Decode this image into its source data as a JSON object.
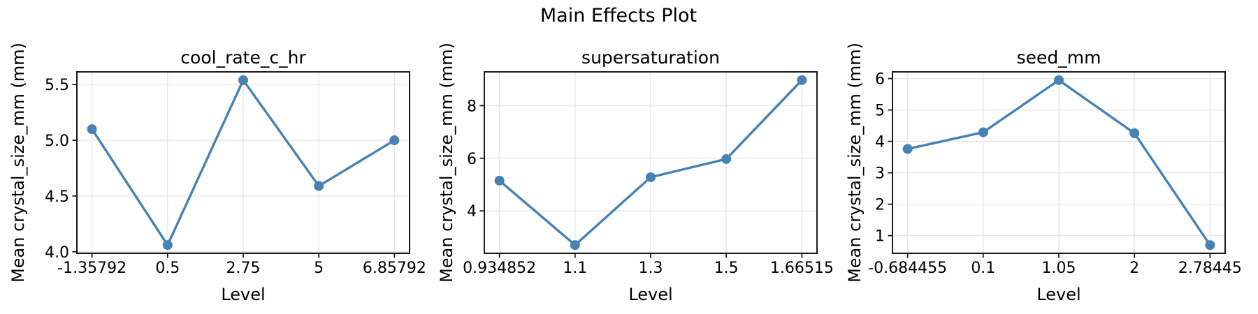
{
  "figure": {
    "suptitle": "Main Effects Plot"
  },
  "style": {
    "line_color": "#4682b4",
    "marker_color": "#4682b4",
    "spine_color": "#1a1a1a",
    "grid_color": "#e7e7e7",
    "text_color": "#000000",
    "background": "#ffffff"
  },
  "chart_data": [
    {
      "type": "line",
      "title": "cool_rate_c_hr",
      "xlabel": "Level",
      "ylabel": "Mean crystal_size_mm (mm)",
      "x_scale": "categorical-equal-spacing",
      "categories": [
        "-1.35792",
        "0.5",
        "2.75",
        "5",
        "6.85792"
      ],
      "values": [
        5.1,
        4.06,
        5.54,
        4.59,
        5.0
      ],
      "yticks": [
        4.0,
        4.5,
        5.0,
        5.5
      ],
      "ytick_labels": [
        "4.0",
        "4.5",
        "5.0",
        "5.5"
      ],
      "ylim": [
        3.986,
        5.614
      ],
      "grid": true,
      "legend": false,
      "marker": "circle"
    },
    {
      "type": "line",
      "title": "supersaturation",
      "xlabel": "Level",
      "ylabel": "Mean crystal_size_mm (mm)",
      "x_scale": "categorical-equal-spacing",
      "categories": [
        "0.934852",
        "1.1",
        "1.3",
        "1.5",
        "1.66515"
      ],
      "values": [
        5.15,
        2.7,
        5.28,
        5.97,
        8.97
      ],
      "yticks": [
        4,
        6,
        8
      ],
      "ytick_labels": [
        "4",
        "6",
        "8"
      ],
      "ylim": [
        2.387,
        9.284
      ],
      "grid": true,
      "legend": false,
      "marker": "circle"
    },
    {
      "type": "line",
      "title": "seed_mm",
      "xlabel": "Level",
      "ylabel": "Mean crystal_size_mm (mm)",
      "x_scale": "categorical-equal-spacing",
      "categories": [
        "-0.684455",
        "0.1",
        "1.05",
        "2",
        "2.78445"
      ],
      "values": [
        3.76,
        4.29,
        5.95,
        4.26,
        0.7
      ],
      "yticks": [
        1,
        2,
        3,
        4,
        5,
        6
      ],
      "ytick_labels": [
        "1",
        "2",
        "3",
        "4",
        "5",
        "6"
      ],
      "ylim": [
        0.438,
        6.213
      ],
      "grid": true,
      "legend": false,
      "marker": "circle"
    }
  ]
}
